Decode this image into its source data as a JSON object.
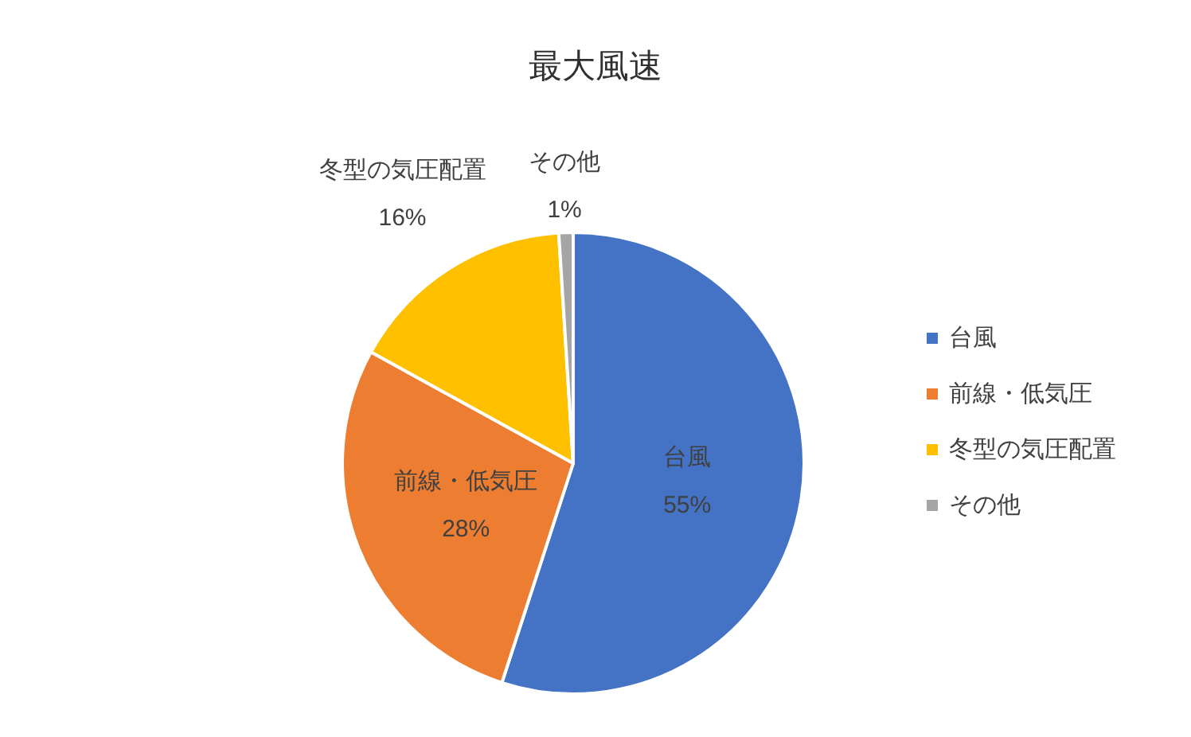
{
  "chart_data": {
    "type": "pie",
    "title": "最大風速",
    "categories": [
      "台風",
      "前線・低気圧",
      "冬型の気圧配置",
      "その他"
    ],
    "values": [
      55,
      28,
      16,
      1
    ],
    "value_labels": [
      "55%",
      "28%",
      "16%",
      "1%"
    ],
    "colors": [
      "#4472c4",
      "#ed7d31",
      "#ffc000",
      "#a5a5a5"
    ],
    "legend": "right"
  }
}
